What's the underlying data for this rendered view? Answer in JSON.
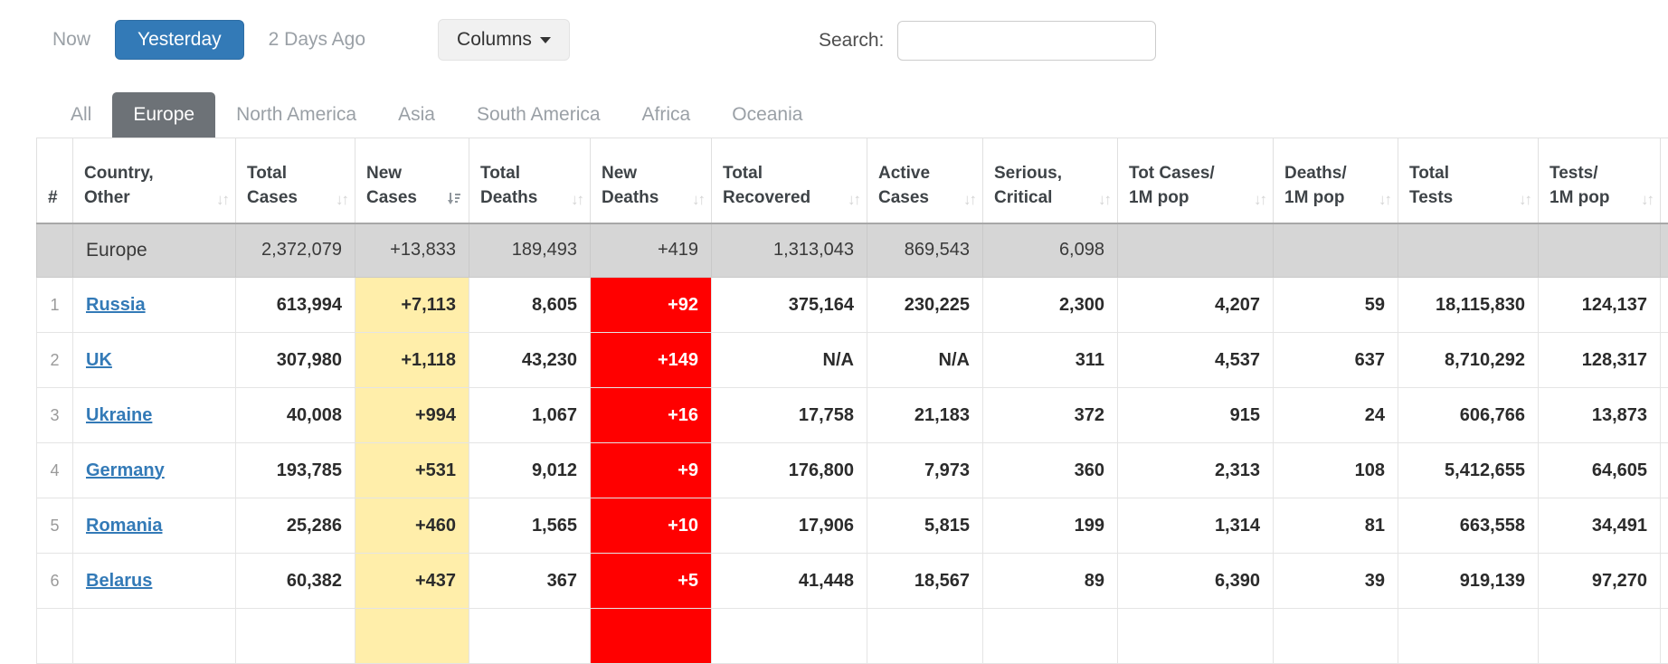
{
  "controls": {
    "now": "Now",
    "yesterday": "Yesterday",
    "two_days_ago": "2 Days Ago",
    "columns": "Columns",
    "search_label": "Search:",
    "search_value": ""
  },
  "tabs": [
    {
      "label": "All",
      "active": false
    },
    {
      "label": "Europe",
      "active": true
    },
    {
      "label": "North America",
      "active": false
    },
    {
      "label": "Asia",
      "active": false
    },
    {
      "label": "South America",
      "active": false
    },
    {
      "label": "Africa",
      "active": false
    },
    {
      "label": "Oceania",
      "active": false
    }
  ],
  "table": {
    "headers": [
      {
        "lines": [
          "#"
        ],
        "sortable": false,
        "sorted": false
      },
      {
        "lines": [
          "Country,",
          "Other"
        ],
        "sortable": true,
        "sorted": false
      },
      {
        "lines": [
          "Total",
          "Cases"
        ],
        "sortable": true,
        "sorted": false
      },
      {
        "lines": [
          "New",
          "Cases"
        ],
        "sortable": true,
        "sorted": true
      },
      {
        "lines": [
          "Total",
          "Deaths"
        ],
        "sortable": true,
        "sorted": false
      },
      {
        "lines": [
          "New",
          "Deaths"
        ],
        "sortable": true,
        "sorted": false
      },
      {
        "lines": [
          "Total",
          "Recovered"
        ],
        "sortable": true,
        "sorted": false
      },
      {
        "lines": [
          "Active",
          "Cases"
        ],
        "sortable": true,
        "sorted": false
      },
      {
        "lines": [
          "Serious,",
          "Critical"
        ],
        "sortable": true,
        "sorted": false
      },
      {
        "lines": [
          "Tot Cases/",
          "1M pop"
        ],
        "sortable": true,
        "sorted": false
      },
      {
        "lines": [
          "Deaths/",
          "1M pop"
        ],
        "sortable": true,
        "sorted": false
      },
      {
        "lines": [
          "Total",
          "Tests"
        ],
        "sortable": true,
        "sorted": false
      },
      {
        "lines": [
          "Tests/",
          "1M pop"
        ],
        "sortable": true,
        "sorted": false
      }
    ],
    "summary_row": {
      "name": "Europe",
      "values": [
        "2,372,079",
        "+13,833",
        "189,493",
        "+419",
        "1,313,043",
        "869,543",
        "6,098",
        "",
        "",
        "",
        ""
      ]
    },
    "rows": [
      {
        "rank": "1",
        "country": "Russia",
        "values": [
          "613,994",
          "+7,113",
          "8,605",
          "+92",
          "375,164",
          "230,225",
          "2,300",
          "4,207",
          "59",
          "18,115,830",
          "124,137"
        ]
      },
      {
        "rank": "2",
        "country": "UK",
        "values": [
          "307,980",
          "+1,118",
          "43,230",
          "+149",
          "N/A",
          "N/A",
          "311",
          "4,537",
          "637",
          "8,710,292",
          "128,317"
        ]
      },
      {
        "rank": "3",
        "country": "Ukraine",
        "values": [
          "40,008",
          "+994",
          "1,067",
          "+16",
          "17,758",
          "21,183",
          "372",
          "915",
          "24",
          "606,766",
          "13,873"
        ]
      },
      {
        "rank": "4",
        "country": "Germany",
        "values": [
          "193,785",
          "+531",
          "9,012",
          "+9",
          "176,800",
          "7,973",
          "360",
          "2,313",
          "108",
          "5,412,655",
          "64,605"
        ]
      },
      {
        "rank": "5",
        "country": "Romania",
        "values": [
          "25,286",
          "+460",
          "1,565",
          "+10",
          "17,906",
          "5,815",
          "199",
          "1,314",
          "81",
          "663,558",
          "34,491"
        ]
      },
      {
        "rank": "6",
        "country": "Belarus",
        "values": [
          "60,382",
          "+437",
          "367",
          "+5",
          "41,448",
          "18,567",
          "89",
          "6,390",
          "39",
          "919,139",
          "97,270"
        ]
      },
      {
        "rank": "",
        "country": "",
        "values": [
          "",
          "",
          "",
          "",
          "",
          "",
          "",
          "",
          "",
          "",
          ""
        ],
        "partial": true
      }
    ]
  },
  "colors": {
    "accent_blue": "#337ab7",
    "highlight_yellow": "#ffeeaa",
    "highlight_red": "#ff0000",
    "active_tab_gray": "#6d7277",
    "summary_row_gray": "#d6d6d6"
  }
}
